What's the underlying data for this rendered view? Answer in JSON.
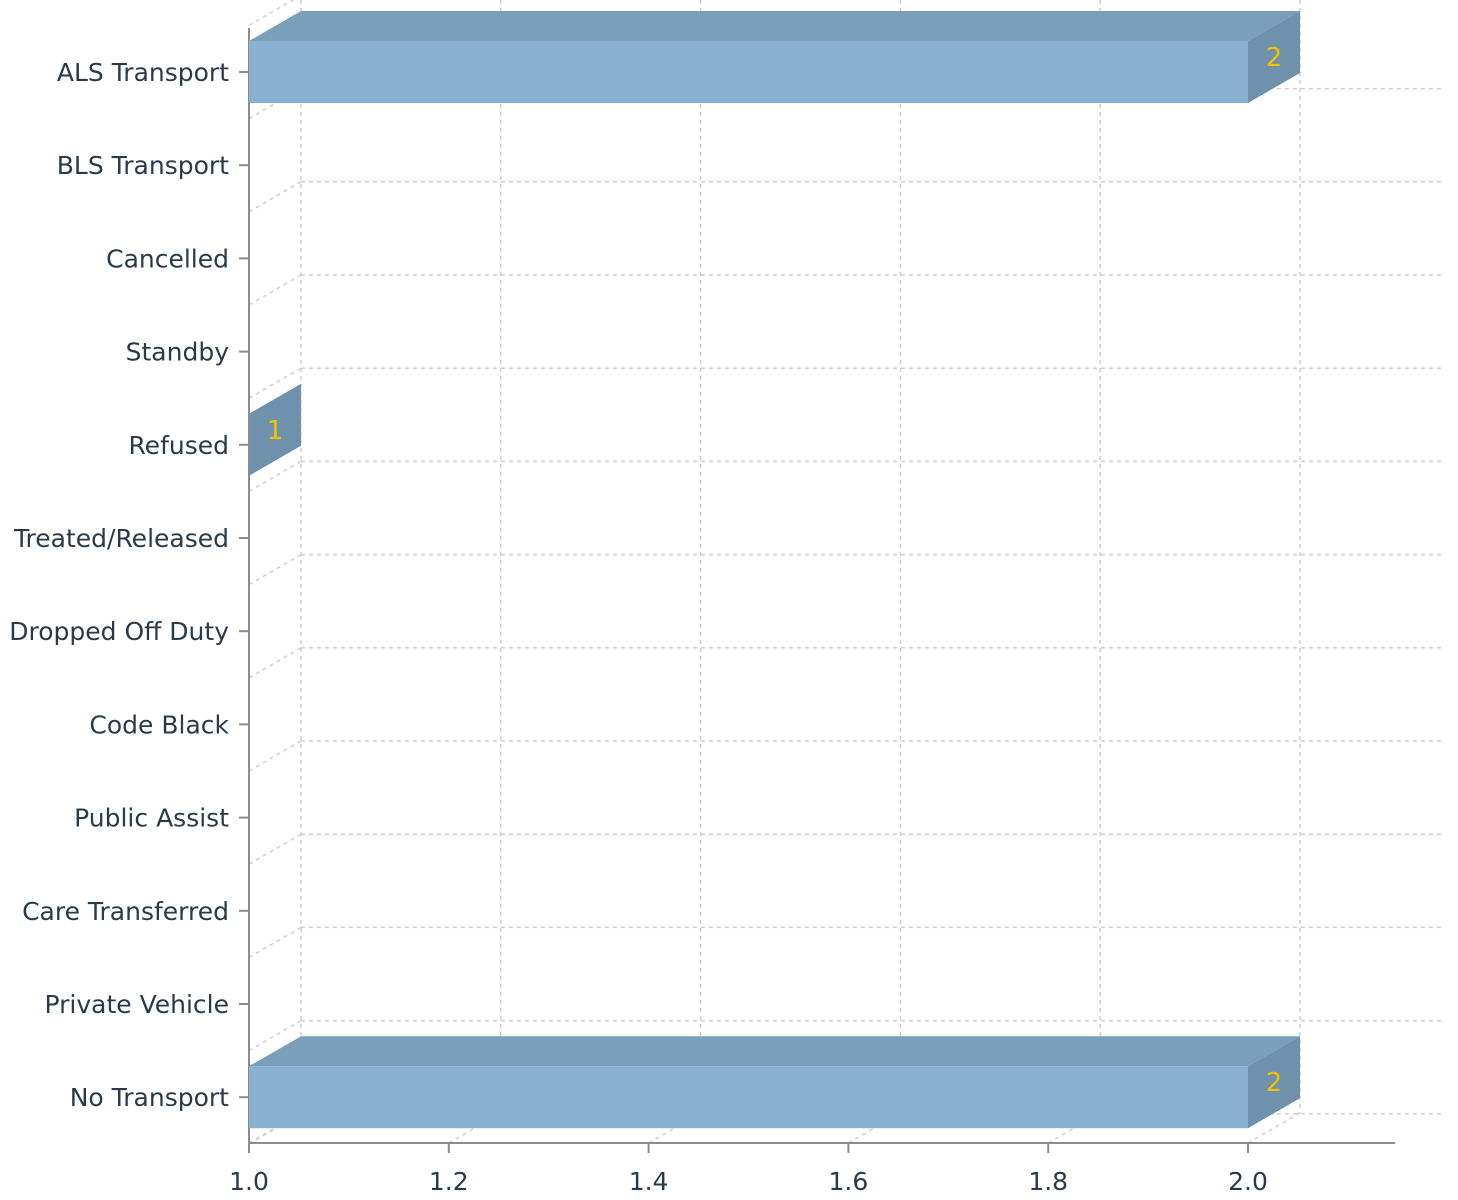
{
  "chart_data": {
    "type": "bar",
    "orientation": "horizontal",
    "style": "3d",
    "title": "",
    "xlabel": "",
    "ylabel": "",
    "categories": [
      "ALS Transport",
      "BLS Transport",
      "Cancelled",
      "Standby",
      "Refused",
      "Treated/Released",
      "Dropped Off Duty",
      "Code Black",
      "Public Assist",
      "Care Transferred",
      "Private Vehicle",
      "No Transport"
    ],
    "values": [
      2,
      null,
      null,
      null,
      1,
      null,
      null,
      null,
      null,
      null,
      null,
      2
    ],
    "data_labels": [
      "2",
      "",
      "",
      "",
      "1",
      "",
      "",
      "",
      "",
      "",
      "",
      "2"
    ],
    "xlim": [
      1.0,
      2.0
    ],
    "xticks": [
      "1.0",
      "1.2",
      "1.4",
      "1.6",
      "1.8",
      "2.0"
    ],
    "grid": true,
    "legend": "none",
    "colors": {
      "bar_front": "#8ab1d2",
      "bar_top": "#7a9fba",
      "bar_side": "#6f91ab",
      "data_label": "#f2c200",
      "axis": "#8c8c8c",
      "grid": "#cfcfcf",
      "text": "#2b3a4a"
    }
  }
}
